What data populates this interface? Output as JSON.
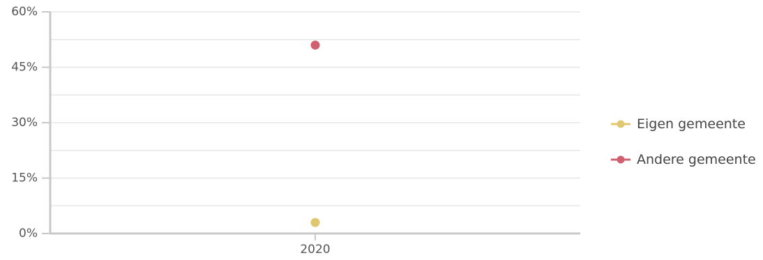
{
  "chart_data": {
    "type": "scatter",
    "categories": [
      "2020"
    ],
    "series": [
      {
        "name": "Eigen gemeente",
        "values": [
          3.0
        ],
        "color": "#e0c870"
      },
      {
        "name": "Andere gemeente",
        "values": [
          51.0
        ],
        "color": "#d06070"
      }
    ],
    "ylim": [
      0,
      60
    ],
    "yticks": [
      0,
      15,
      30,
      45,
      60
    ],
    "ytick_labels": [
      "0%",
      "15%",
      "30%",
      "45%",
      "60%"
    ],
    "grid": true,
    "legend_position": "right",
    "axis_color": "#c8c8c8",
    "grid_color": "#e6e6e6"
  }
}
